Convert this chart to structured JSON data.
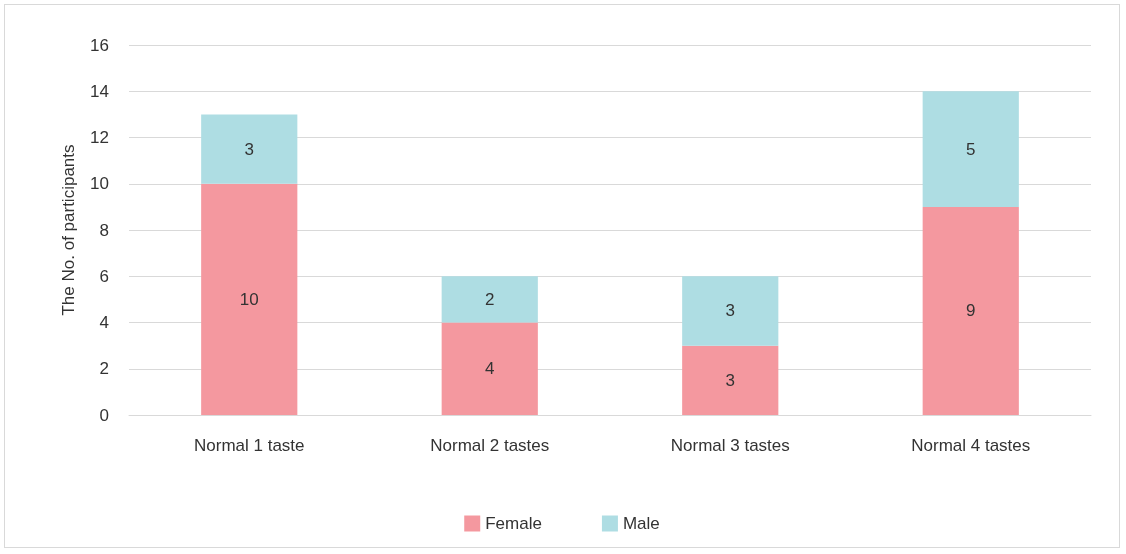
{
  "chart_data": {
    "type": "bar",
    "stacked": true,
    "ylabel": "The No. of participants",
    "categories": [
      "Normal 1 taste",
      "Normal 2 tastes",
      "Normal 3 tastes",
      "Normal 4 tastes"
    ],
    "series": [
      {
        "name": "Female",
        "color": "#f4989f",
        "values": [
          10,
          4,
          3,
          9
        ]
      },
      {
        "name": "Male",
        "color": "#aedde3",
        "values": [
          3,
          2,
          3,
          5
        ]
      }
    ],
    "ylim": [
      0,
      16
    ],
    "yticks": [
      0,
      2,
      4,
      6,
      8,
      10,
      12,
      14,
      16
    ],
    "grid": "y",
    "legend": "bottom",
    "data_labels": true
  }
}
